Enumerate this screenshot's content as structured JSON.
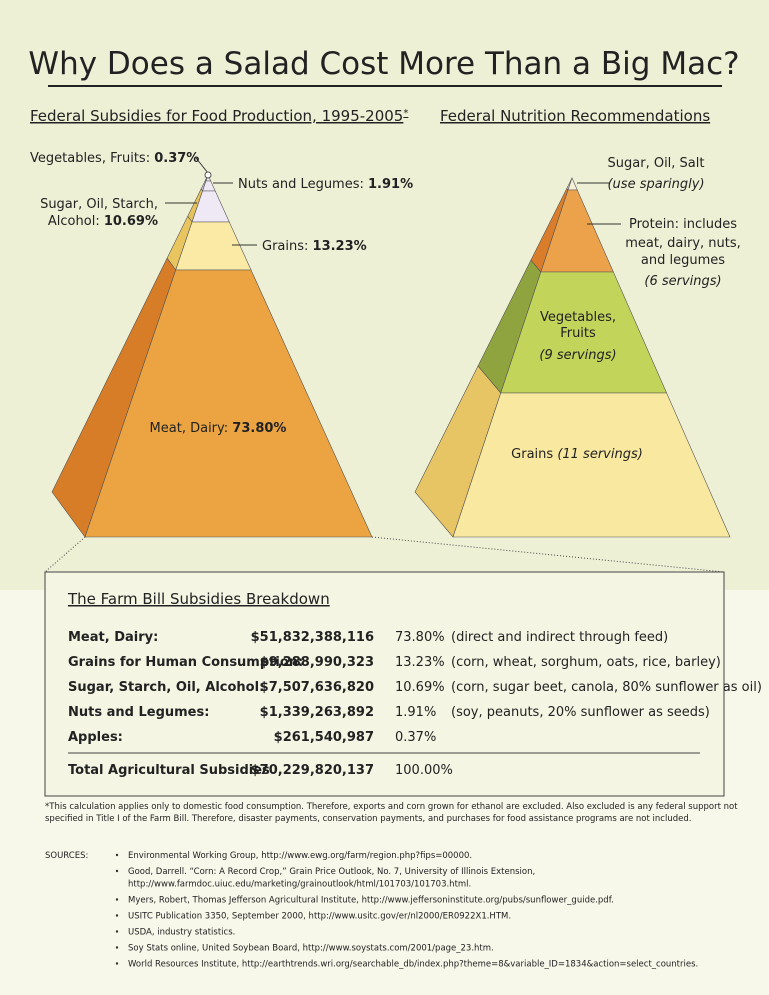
{
  "title": "Why Does a Salad Cost More Than a Big Mac?",
  "left": {
    "heading": "Federal Subsidies for Food Production, 1995-2005",
    "heading_mark": "*",
    "labels": {
      "vegetables": {
        "name": "Vegetables, Fruits:",
        "value": "0.37%"
      },
      "nuts": {
        "name": "Nuts and Legumes:",
        "value": "1.91%"
      },
      "sugar": {
        "name": [
          "Sugar, Oil, Starch,",
          "Alcohol:"
        ],
        "value": "10.69%"
      },
      "grains": {
        "name": "Grains:",
        "value": "13.23%"
      },
      "meat": {
        "name": "Meat, Dairy:",
        "value": "73.80%"
      }
    }
  },
  "right": {
    "heading": "Federal Nutrition Recommendations",
    "labels": {
      "sugar": {
        "name": "Sugar, Oil, Salt",
        "note": "(use sparingly)"
      },
      "protein": {
        "name": [
          "Protein:  includes",
          "meat, dairy, nuts,",
          "and legumes"
        ],
        "note": "(6 servings)"
      },
      "vegetables": {
        "name": [
          "Vegetables,",
          "Fruits"
        ],
        "note": "(9 servings)"
      },
      "grains": {
        "name": "Grains",
        "note": "(11 servings)"
      }
    }
  },
  "table": {
    "title": "The Farm Bill Subsidies Breakdown",
    "rows": [
      [
        "Meat, Dairy:",
        "$51,832,388,116",
        "73.80%",
        "(direct and indirect through feed)"
      ],
      [
        "Grains for Human Consumption:",
        "$9,288,990,323",
        "13.23%",
        "(corn, wheat, sorghum, oats, rice, barley)"
      ],
      [
        "Sugar, Starch, Oil, Alcohol:",
        "$7,507,636,820",
        "10.69%",
        "(corn, sugar beet, canola, 80% sunflower as oil)"
      ],
      [
        "Nuts and Legumes:",
        "$1,339,263,892",
        "1.91%",
        "(soy, peanuts, 20% sunflower as seeds)"
      ],
      [
        "Apples:",
        "$261,540,987",
        "0.37%"
      ]
    ],
    "total": [
      "Total Agricultural Subsidies",
      "$70,229,820,137",
      "100.00%"
    ]
  },
  "footnote": [
    "*This calculation applies only to domestic food consumption. Therefore, exports and corn grown for ethanol are excluded. Also excluded is any federal support not",
    "specified in Title I of the Farm Bill. Therefore, disaster payments, conservation payments, and purchases for food assistance programs are not included."
  ],
  "sources_label": "SOURCES:",
  "sources": [
    [
      "Environmental Working Group, http://www.ewg.org/farm/region.php?fips=00000."
    ],
    [
      "Good, Darrell. “Corn: A Record Crop,” Grain Price Outlook, No. 7, University of Illinois Extension,",
      "http://www.farmdoc.uiuc.edu/marketing/grainoutlook/html/101703/101703.html."
    ],
    [
      "Myers, Robert, Thomas Jefferson Agricultural Institute, http://www.jeffersoninstitute.org/pubs/sunflower_guide.pdf."
    ],
    [
      "USITC Publication 3350, September 2000, http://www.usitc.gov/er/nl2000/ER0922X1.HTM."
    ],
    [
      "USDA, industry statistics."
    ],
    [
      "Soy Stats online, United Soybean Board, http://www.soystats.com/2001/page_23.htm."
    ],
    [
      "World Resources Institute, http://earthtrends.wri.org/searchable_db/index.php?theme=8&variable_ID=1834&action=select_countries."
    ]
  ]
}
